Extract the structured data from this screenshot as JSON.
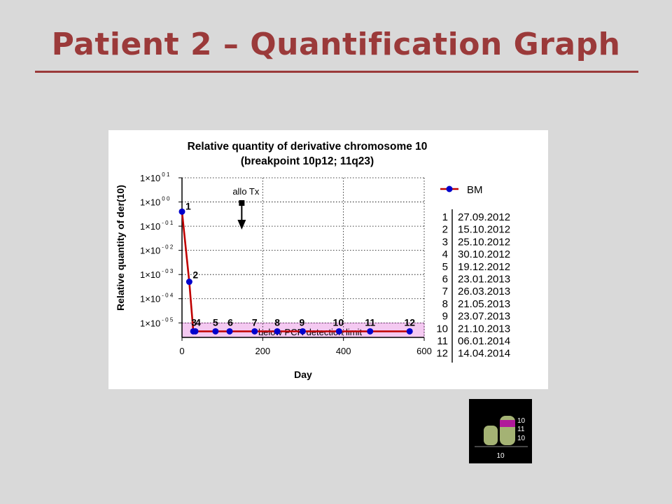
{
  "slide": {
    "title": "Patient 2 – Quantification Graph"
  },
  "chart_data": {
    "type": "line",
    "title": "Relative quantity of derivative chromosome 10",
    "subtitle": "(breakpoint 10p12; 11q23)",
    "xlabel": "Day",
    "ylabel": "Relative quantity of der(10)",
    "xlim": [
      0,
      600
    ],
    "x_ticks": [
      "0",
      "200",
      "400",
      "600"
    ],
    "y_scale": "log",
    "ylim_exp": [
      -5.6,
      1
    ],
    "y_ticks": [
      {
        "exp": 1,
        "base": "1×10",
        "sup": "0 1"
      },
      {
        "exp": 0,
        "base": "1×10",
        "sup": "0 0"
      },
      {
        "exp": -1,
        "base": "1×10",
        "sup": "- 0 1"
      },
      {
        "exp": -2,
        "base": "1×10",
        "sup": "- 0 2"
      },
      {
        "exp": -3,
        "base": "1×10",
        "sup": "- 0 3"
      },
      {
        "exp": -4,
        "base": "1×10",
        "sup": "- 0 4"
      },
      {
        "exp": -5,
        "base": "1×10",
        "sup": "- 0 5"
      }
    ],
    "grid": "dotted",
    "legend": {
      "position": "right",
      "entries": [
        "BM"
      ]
    },
    "series": [
      {
        "name": "BM",
        "color": "#c00000",
        "marker_color": "#0000cc",
        "points": [
          {
            "label": "1",
            "x": 0,
            "y_exp": -0.4
          },
          {
            "label": "2",
            "x": 18,
            "y_exp": -3.3
          },
          {
            "label": "3",
            "x": 28,
            "y_exp": -5.35
          },
          {
            "label": "4",
            "x": 33,
            "y_exp": -5.35
          },
          {
            "label": "5",
            "x": 83,
            "y_exp": -5.35
          },
          {
            "label": "6",
            "x": 118,
            "y_exp": -5.35
          },
          {
            "label": "7",
            "x": 180,
            "y_exp": -5.35
          },
          {
            "label": "8",
            "x": 236,
            "y_exp": -5.35
          },
          {
            "label": "9",
            "x": 299,
            "y_exp": -5.35
          },
          {
            "label": "10",
            "x": 389,
            "y_exp": -5.35
          },
          {
            "label": "11",
            "x": 466,
            "y_exp": -5.35
          },
          {
            "label": "12",
            "x": 564,
            "y_exp": -5.35
          }
        ]
      }
    ],
    "annotations": {
      "allo_tx": {
        "text": "allo Tx",
        "x": 148
      },
      "detection_limit": {
        "text": "below PCR detection limit",
        "y_exp": -5
      }
    },
    "date_table": [
      {
        "n": "1",
        "date": "27.09.2012"
      },
      {
        "n": "2",
        "date": "15.10.2012"
      },
      {
        "n": "3",
        "date": "25.10.2012"
      },
      {
        "n": "4",
        "date": "30.10.2012"
      },
      {
        "n": "5",
        "date": "19.12.2012"
      },
      {
        "n": "6",
        "date": "23.01.2013"
      },
      {
        "n": "7",
        "date": "26.03.2013"
      },
      {
        "n": "8",
        "date": "21.05.2013"
      },
      {
        "n": "9",
        "date": "23.07.2013"
      },
      {
        "n": "10",
        "date": "21.10.2013"
      },
      {
        "n": "11",
        "date": "06.01.2014"
      },
      {
        "n": "12",
        "date": "14.04.2014"
      }
    ]
  },
  "karyotype": {
    "band_labels": [
      "10",
      "11",
      "10"
    ],
    "bottom_label": "10",
    "colors": {
      "chromosome": "#a4b274",
      "translocation": "#b0199a"
    }
  }
}
